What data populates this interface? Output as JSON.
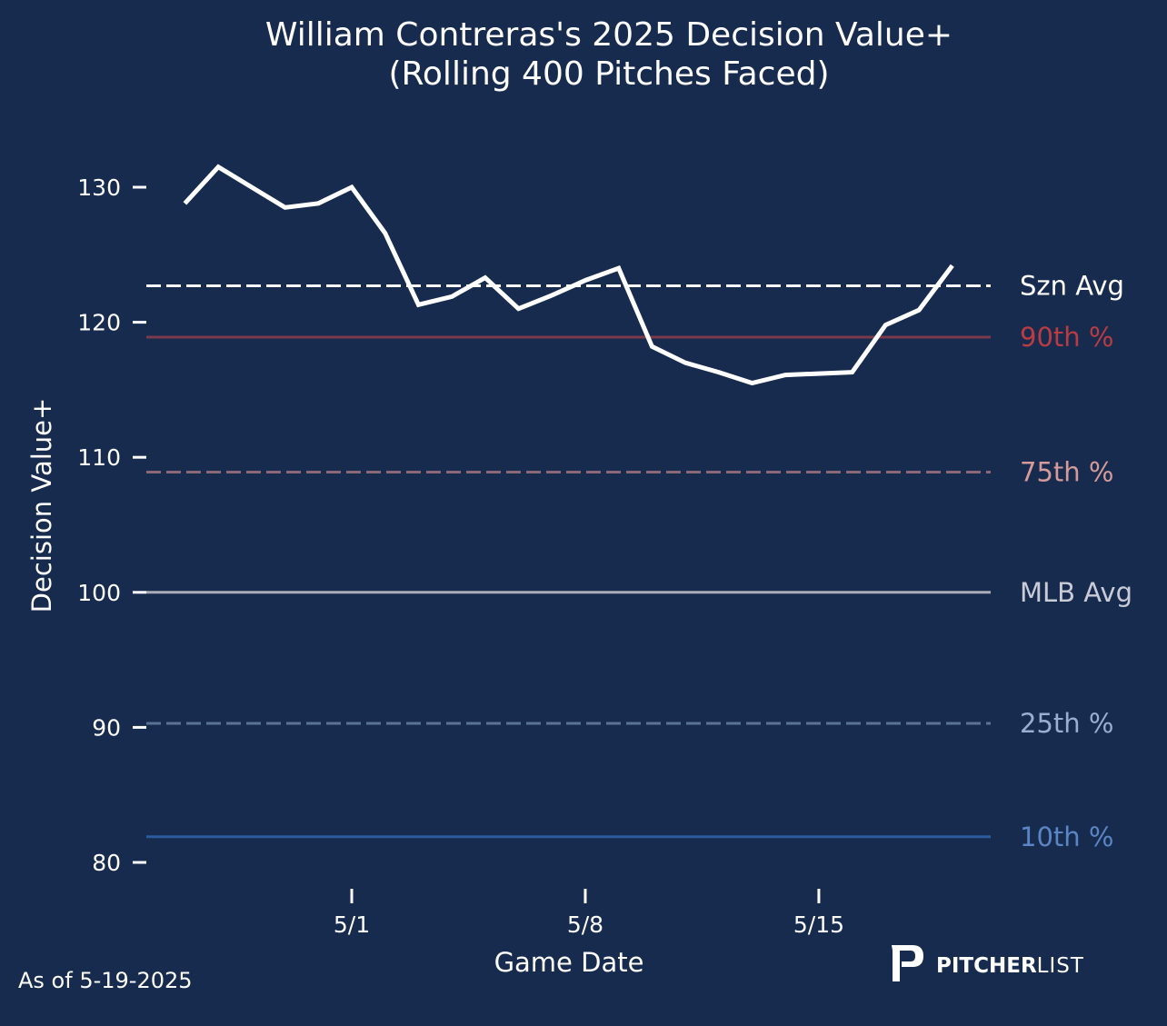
{
  "chart_data": {
    "type": "line",
    "title": "William Contreras's 2025 Decision Value+",
    "subtitle": "(Rolling 400 Pitches Faced)",
    "xlabel": "Game Date",
    "ylabel": "Decision Value+",
    "ylim": [
      78,
      135
    ],
    "yticks": [
      80,
      90,
      100,
      110,
      120,
      130
    ],
    "ytick_labels": [
      "80",
      "90",
      "100",
      "110",
      "120",
      "130"
    ],
    "xticks": [
      {
        "day": 0,
        "label": "5/1"
      },
      {
        "day": 7,
        "label": "5/8"
      },
      {
        "day": 14,
        "label": "5/15"
      }
    ],
    "xlim_days": [
      -6.2,
      19.1
    ],
    "grid": false,
    "series": [
      {
        "name": "Decision Value+",
        "color": "#ffffff",
        "x_days_from_5_1": [
          -5,
          -4,
          -3,
          -2,
          -1,
          0,
          1,
          2,
          3,
          4,
          5,
          6,
          7,
          8,
          9,
          10,
          11,
          12,
          13,
          14,
          15,
          16,
          17,
          18
        ],
        "x_dates": [
          "4/26",
          "4/27",
          "4/28",
          "4/29",
          "4/30",
          "5/1",
          "5/2",
          "5/3",
          "5/4",
          "5/5",
          "5/6",
          "5/7",
          "5/8",
          "5/9",
          "5/10",
          "5/11",
          "5/12",
          "5/13",
          "5/14",
          "5/15",
          "5/16",
          "5/17",
          "5/18",
          "5/19"
        ],
        "values": [
          128.8,
          131.5,
          130.0,
          128.5,
          128.8,
          130.0,
          126.6,
          121.3,
          121.9,
          123.3,
          121.0,
          122.0,
          123.1,
          124.0,
          118.2,
          117.0,
          116.3,
          115.5,
          116.1,
          116.2,
          116.3,
          119.8,
          120.9,
          124.2
        ]
      }
    ],
    "reference_lines": [
      {
        "label": "Szn Avg",
        "value": 122.7,
        "color": "#ffffff",
        "text_color": "#ffffff",
        "dash": true
      },
      {
        "label": "90th %",
        "value": 118.9,
        "color": "#7a3a4c",
        "text_color": "#b83c42",
        "dash": false
      },
      {
        "label": "75th %",
        "value": 108.9,
        "color": "#8a6878",
        "text_color": "#d69a9a",
        "dash": true
      },
      {
        "label": "MLB Avg",
        "value": 100.0,
        "color": "#a8acb8",
        "text_color": "#c9ccd6",
        "dash": false
      },
      {
        "label": "25th %",
        "value": 90.3,
        "color": "#5a7394",
        "text_color": "#9aaed0",
        "dash": true
      },
      {
        "label": "10th %",
        "value": 81.9,
        "color": "#2c5b9e",
        "text_color": "#5b85c4",
        "dash": false
      }
    ]
  },
  "footer": {
    "as_of": "As of 5-19-2025",
    "brand_bold": "PITCHER",
    "brand_light": "LIST"
  },
  "colors": {
    "background": "#172b4f",
    "foreground": "#ffffff"
  }
}
